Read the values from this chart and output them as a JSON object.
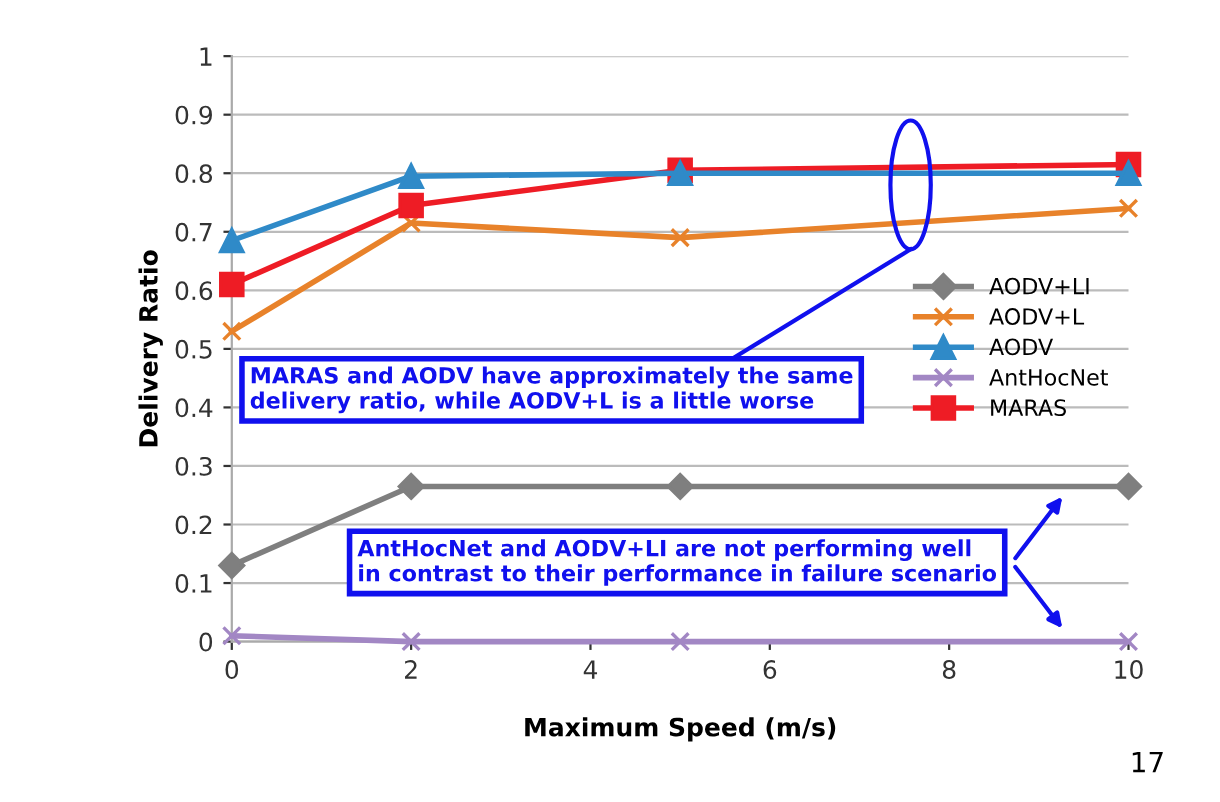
{
  "chart_data": {
    "type": "line",
    "xlabel": "Maximum Speed (m/s)",
    "ylabel": "Delivery Ratio",
    "x": [
      0,
      2,
      5,
      10
    ],
    "series": [
      {
        "name": "AODV+LI",
        "color": "#7f7f7f",
        "marker": "diamond",
        "values": [
          0.13,
          0.265,
          0.265,
          0.265
        ]
      },
      {
        "name": "AODV+L",
        "color": "#e8822a",
        "marker": "cross",
        "values": [
          0.53,
          0.715,
          0.69,
          0.74
        ]
      },
      {
        "name": "AODV",
        "color": "#2f8ac8",
        "marker": "triangle",
        "values": [
          0.685,
          0.795,
          0.8,
          0.8
        ]
      },
      {
        "name": "AntHocNet",
        "color": "#a287c4",
        "marker": "cross",
        "values": [
          0.01,
          0.0,
          0.0,
          0.0
        ]
      },
      {
        "name": "MARAS",
        "color": "#ee1c25",
        "marker": "square",
        "values": [
          0.61,
          0.745,
          0.805,
          0.815
        ]
      }
    ],
    "xlim": [
      0,
      10
    ],
    "xticks": [
      0,
      2,
      4,
      6,
      8,
      10
    ],
    "ylim": [
      0,
      1
    ],
    "yticks": [
      0,
      0.1,
      0.2,
      0.3,
      0.4,
      0.5,
      0.6,
      0.7,
      0.8,
      0.9,
      1
    ],
    "grid": "y",
    "legend": "right",
    "annotations": [
      "MARAS and AODV have approximately the same\ndelivery ratio, while AODV+L is a little worse",
      "AntHocNet and AODV+LI are not performing well\nin contrast to their performance in failure scenario",
      "17"
    ]
  }
}
